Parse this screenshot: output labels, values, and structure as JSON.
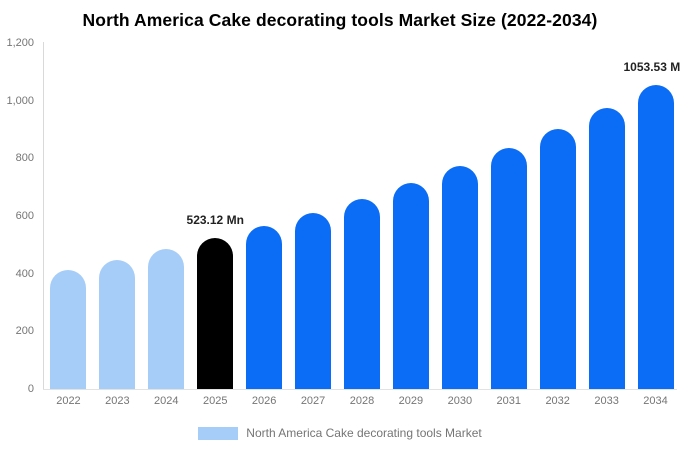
{
  "title": "North America Cake decorating tools Market Size (2022-2034)",
  "legend": {
    "label": "North America Cake decorating tools Market",
    "swatch_color": "#a6cdf8"
  },
  "colors": {
    "historical_bar": "#a6cdf8",
    "current_year_bar": "#000000",
    "forecast_bar": "#0b6cf5",
    "axis_line": "#d9d9d9",
    "tick_label": "#757575",
    "value_label": "#222222"
  },
  "chart_data": {
    "type": "bar",
    "title": "North America Cake decorating tools Market Size (2022-2034)",
    "xlabel": "",
    "ylabel": "",
    "categories": [
      "2022",
      "2023",
      "2024",
      "2025",
      "2026",
      "2027",
      "2028",
      "2029",
      "2030",
      "2031",
      "2032",
      "2033",
      "2034"
    ],
    "values": [
      414.2,
      447.8,
      484.0,
      523.12,
      565.4,
      611.2,
      660.6,
      714.0,
      771.8,
      834.2,
      901.7,
      974.6,
      1053.53
    ],
    "bar_colors": [
      "#a6cdf8",
      "#a6cdf8",
      "#a6cdf8",
      "#000000",
      "#0b6cf5",
      "#0b6cf5",
      "#0b6cf5",
      "#0b6cf5",
      "#0b6cf5",
      "#0b6cf5",
      "#0b6cf5",
      "#0b6cf5",
      "#0b6cf5"
    ],
    "annotations": [
      {
        "index": 3,
        "text": "523.12 Mn"
      },
      {
        "index": 12,
        "text": "1053.53 Mn"
      }
    ],
    "ylim": [
      0,
      1200
    ],
    "yticks": [
      {
        "value": 0,
        "label": "0"
      },
      {
        "value": 200,
        "label": "200"
      },
      {
        "value": 400,
        "label": "400"
      },
      {
        "value": 600,
        "label": "600"
      },
      {
        "value": 800,
        "label": "800"
      },
      {
        "value": 1000,
        "label": "1,000"
      },
      {
        "value": 1200,
        "label": "1,200"
      }
    ],
    "grid": false,
    "legend_position": "bottom",
    "legend_entries": [
      "North America Cake decorating tools Market"
    ]
  }
}
